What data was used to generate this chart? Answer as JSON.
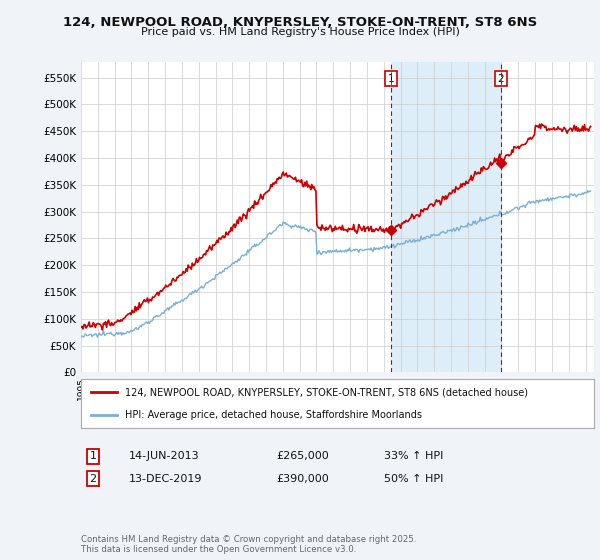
{
  "title1": "124, NEWPOOL ROAD, KNYPERSLEY, STOKE-ON-TRENT, ST8 6NS",
  "title2": "Price paid vs. HM Land Registry's House Price Index (HPI)",
  "ylim": [
    0,
    580000
  ],
  "yticks": [
    0,
    50000,
    100000,
    150000,
    200000,
    250000,
    300000,
    350000,
    400000,
    450000,
    500000,
    550000
  ],
  "ytick_labels": [
    "£0",
    "£50K",
    "£100K",
    "£150K",
    "£200K",
    "£250K",
    "£300K",
    "£350K",
    "£400K",
    "£450K",
    "£500K",
    "£550K"
  ],
  "xlim_start": 1995.0,
  "xlim_end": 2025.5,
  "property_color": "#cc0000",
  "hpi_color": "#7ab0d4",
  "shaded_color": "#ddeef8",
  "transaction1": {
    "label": "1",
    "date": "14-JUN-2013",
    "price": "£265,000",
    "hpi": "33% ↑ HPI",
    "year": 2013.45,
    "value": 265000
  },
  "transaction2": {
    "label": "2",
    "date": "13-DEC-2019",
    "price": "£390,000",
    "hpi": "50% ↑ HPI",
    "year": 2019.95,
    "value": 390000
  },
  "legend_line1": "124, NEWPOOL ROAD, KNYPERSLEY, STOKE-ON-TRENT, ST8 6NS (detached house)",
  "legend_line2": "HPI: Average price, detached house, Staffordshire Moorlands",
  "footer": "Contains HM Land Registry data © Crown copyright and database right 2025.\nThis data is licensed under the Open Government Licence v3.0.",
  "bg_color": "#f0f4f8",
  "plot_bg": "#ffffff"
}
